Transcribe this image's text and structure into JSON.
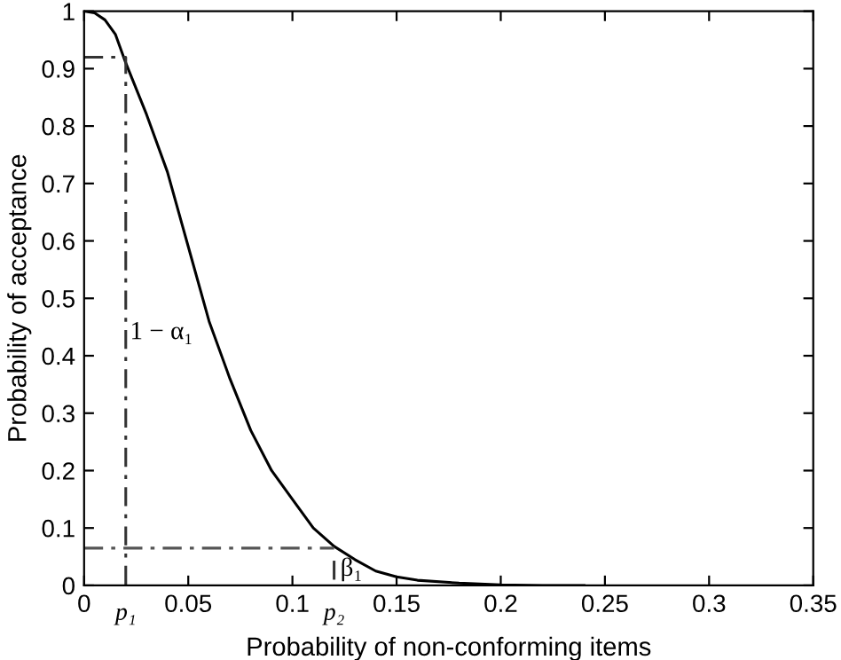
{
  "chart_data": {
    "type": "line",
    "xlabel": "Probability of non-conforming items",
    "ylabel": "Probability of acceptance",
    "series": [
      {
        "color": "#000000",
        "line_style": "solid",
        "x": [
          0,
          0.005,
          0.01,
          0.015,
          0.02,
          0.03,
          0.04,
          0.05,
          0.06,
          0.07,
          0.08,
          0.09,
          0.1,
          0.11,
          0.12,
          0.13,
          0.14,
          0.15,
          0.16,
          0.18,
          0.2,
          0.22,
          0.24
        ],
        "values": [
          1,
          0.997,
          0.985,
          0.96,
          0.91,
          0.82,
          0.72,
          0.59,
          0.46,
          0.36,
          0.27,
          0.2,
          0.15,
          0.1,
          0.068,
          0.045,
          0.025,
          0.015,
          0.009,
          0.004,
          0.001,
          0,
          0
        ]
      },
      {
        "color": "#333333",
        "line_style": "dashed",
        "x": [
          0,
          0.02,
          0.02
        ],
        "values": [
          0.92,
          0.92,
          0
        ]
      },
      {
        "color": "#555555",
        "line_style": "dashed",
        "x": [
          0,
          0.12
        ],
        "values": [
          0.065,
          0.065
        ]
      },
      {
        "color": "#333333",
        "line_style": "dashed",
        "x": [
          0.12,
          0.12
        ],
        "values": [
          0.01,
          0.045
        ]
      }
    ],
    "annotations": [
      {
        "text": "1 − α₁",
        "x": 0.022,
        "y": 0.44
      },
      {
        "text": "β₁",
        "x": 0.123,
        "y": 0.028
      },
      {
        "text": "p₁",
        "x": 0.02,
        "y": 0
      },
      {
        "text": "p₂",
        "x": 0.12,
        "y": 0
      }
    ],
    "xlim": [
      0,
      0.35
    ],
    "xticks": [
      0,
      0.05,
      0.1,
      0.15,
      0.2,
      0.25,
      0.3,
      0.35
    ],
    "ylim": [
      0,
      1
    ],
    "yticks": [
      0,
      0.1,
      0.2,
      0.3,
      0.4,
      0.5,
      0.6,
      0.7,
      0.8,
      0.9,
      1
    ],
    "grid": false,
    "legend": false,
    "marker": "none"
  }
}
